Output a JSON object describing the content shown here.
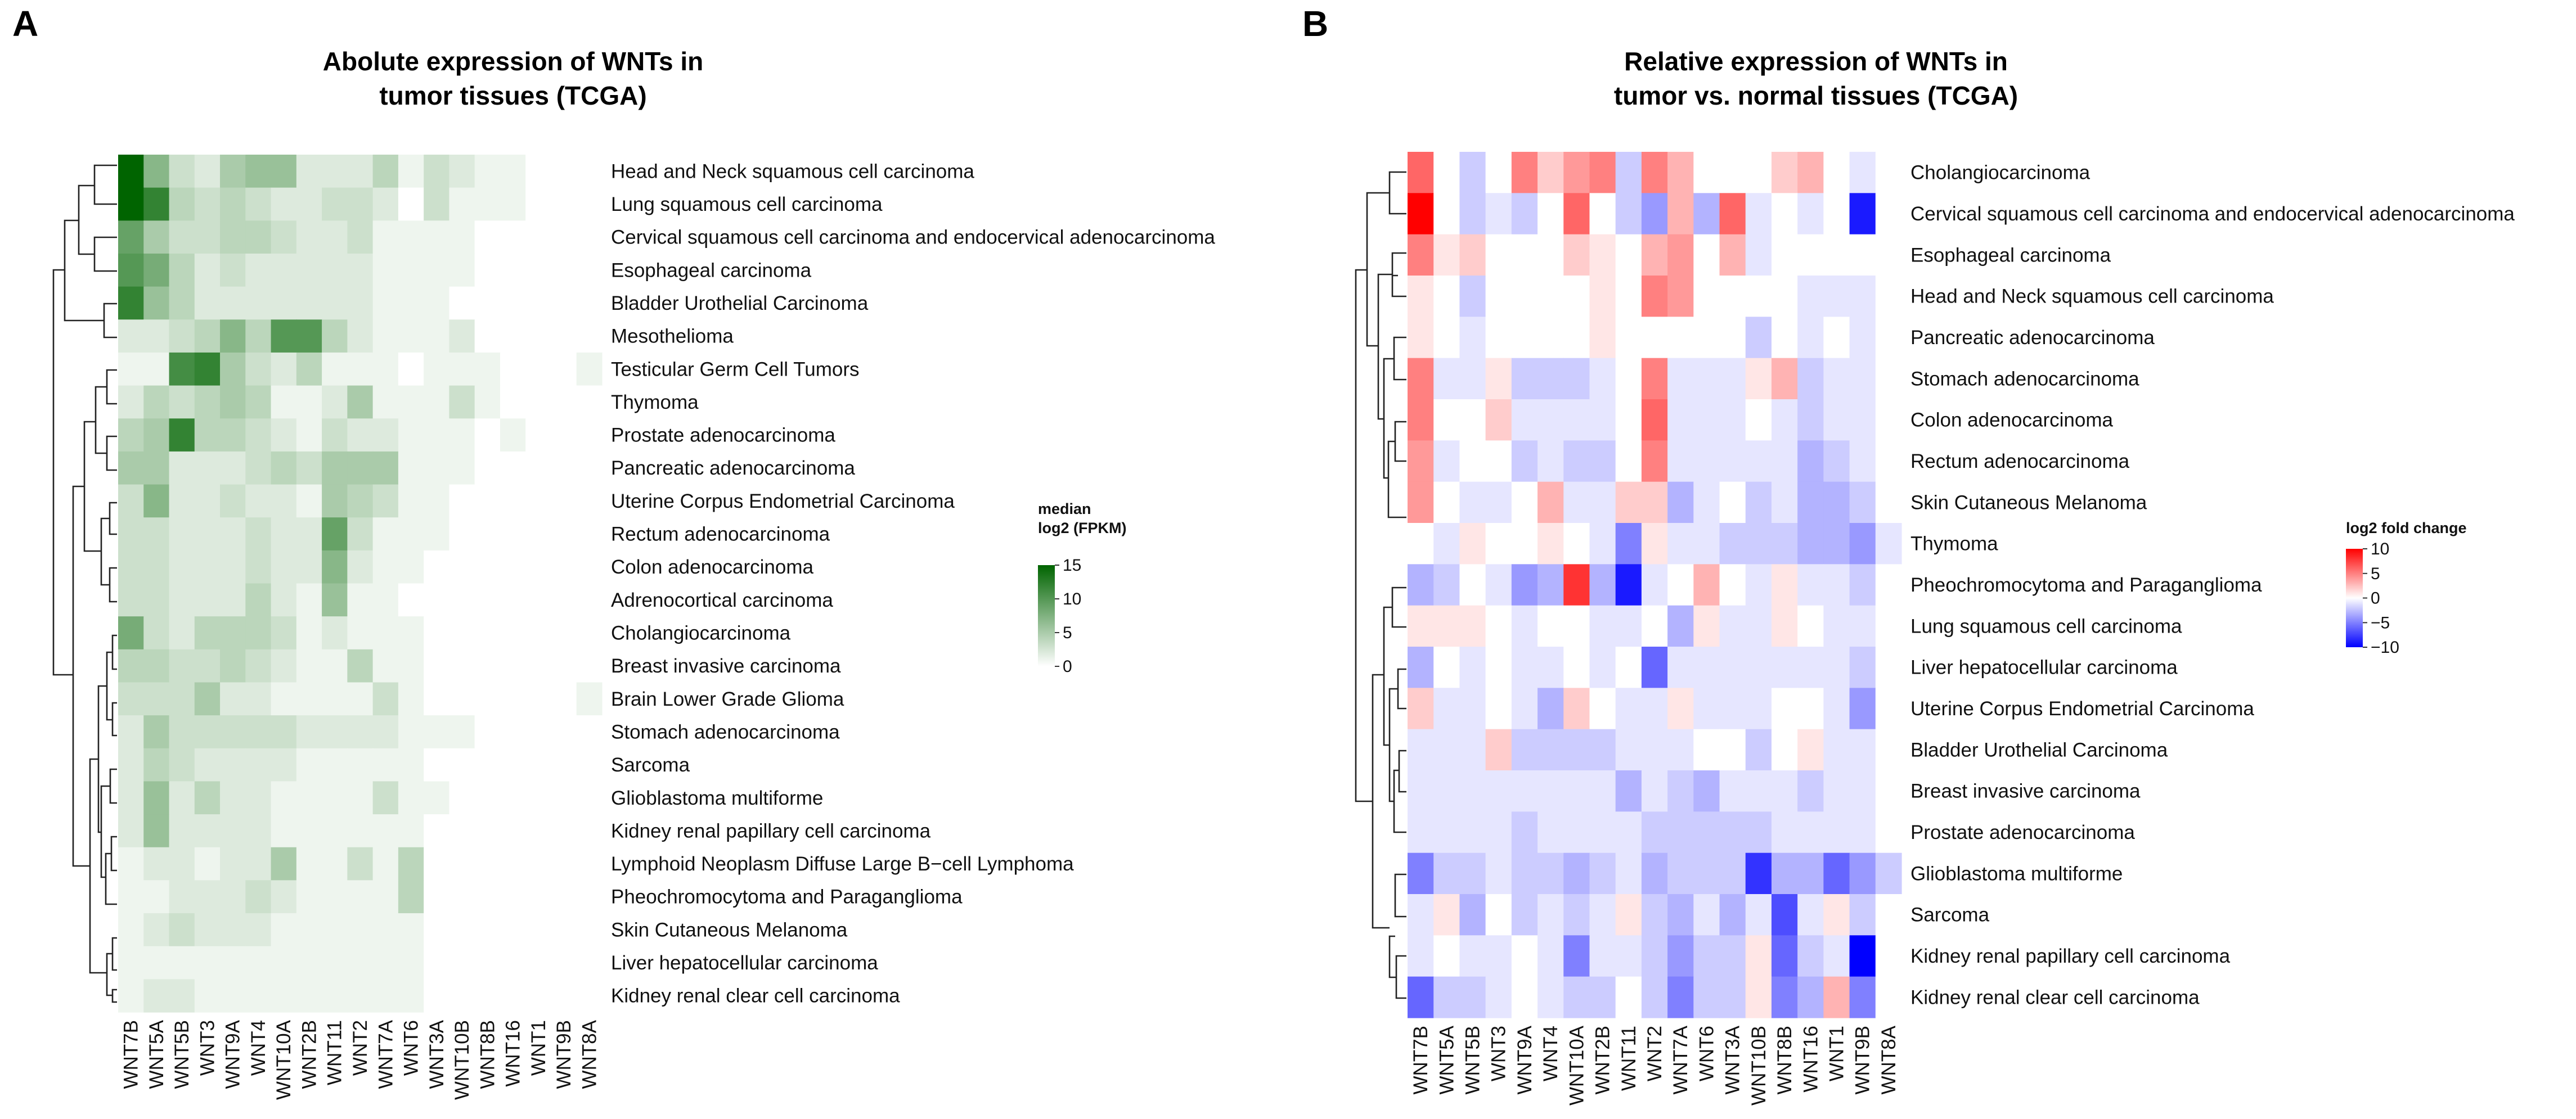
{
  "chart_data": [
    {
      "type": "heatmap",
      "panel_label": "A",
      "title": [
        "Abolute expression of WNTs in",
        "tumor tissues (TCGA)"
      ],
      "columns": [
        "WNT7B",
        "WNT5A",
        "WNT5B",
        "WNT3",
        "WNT9A",
        "WNT4",
        "WNT10A",
        "WNT2B",
        "WNT11",
        "WNT2",
        "WNT7A",
        "WNT6",
        "WNT3A",
        "WNT10B",
        "WNT8B",
        "WNT16",
        "WNT1",
        "WNT9B",
        "WNT8A"
      ],
      "rows": [
        "Head and Neck squamous cell carcinoma",
        "Lung squamous cell carcinoma",
        "Cervical squamous cell carcinoma and endocervical adenocarcinoma",
        "Esophageal carcinoma",
        "Bladder Urothelial Carcinoma",
        "Mesothelioma",
        "Testicular Germ Cell Tumors",
        "Thymoma",
        "Prostate adenocarcinoma",
        "Pancreatic adenocarcinoma",
        "Uterine Corpus Endometrial Carcinoma",
        "Rectum adenocarcinoma",
        "Colon adenocarcinoma",
        "Adrenocortical carcinoma",
        "Cholangiocarcinoma",
        "Breast invasive carcinoma",
        "Brain Lower Grade Glioma",
        "Stomach adenocarcinoma",
        "Sarcoma",
        "Glioblastoma multiforme",
        "Kidney renal papillary cell carcinoma",
        "Lymphoid Neoplasm Diffuse Large B−cell Lymphoma",
        "Pheochromocytoma and Paraganglioma",
        "Skin Cutaneous Melanoma",
        "Liver hepatocellular carcinoma",
        "Kidney renal clear cell carcinoma"
      ],
      "values": [
        [
          15,
          7,
          3,
          2,
          5,
          6,
          6,
          2,
          2,
          2,
          4,
          1,
          3,
          2,
          1,
          1,
          0,
          0,
          0
        ],
        [
          15,
          12,
          4,
          3,
          4,
          3,
          2,
          2,
          3,
          3,
          2,
          0,
          3,
          1,
          1,
          1,
          0,
          0,
          0
        ],
        [
          9,
          5,
          3,
          3,
          4,
          4,
          3,
          2,
          2,
          3,
          1,
          1,
          1,
          1,
          0,
          0,
          0,
          0,
          0
        ],
        [
          10,
          8,
          4,
          2,
          3,
          2,
          2,
          2,
          2,
          2,
          1,
          1,
          1,
          1,
          0,
          0,
          0,
          0,
          0
        ],
        [
          12,
          6,
          4,
          2,
          2,
          2,
          2,
          2,
          2,
          2,
          1,
          1,
          1,
          0,
          0,
          0,
          0,
          0,
          0
        ],
        [
          2,
          2,
          3,
          4,
          7,
          4,
          10,
          10,
          4,
          2,
          1,
          1,
          1,
          2,
          0,
          0,
          0,
          0,
          0
        ],
        [
          1,
          1,
          11,
          12,
          5,
          3,
          2,
          4,
          1,
          1,
          1,
          0,
          1,
          1,
          1,
          0,
          0,
          0,
          1
        ],
        [
          2,
          4,
          3,
          4,
          5,
          4,
          1,
          1,
          2,
          5,
          1,
          1,
          1,
          3,
          1,
          0,
          0,
          0,
          0
        ],
        [
          4,
          5,
          12,
          4,
          4,
          3,
          2,
          1,
          3,
          2,
          2,
          1,
          1,
          1,
          0,
          1,
          0,
          0,
          0
        ],
        [
          5,
          5,
          2,
          2,
          2,
          3,
          4,
          3,
          5,
          5,
          5,
          1,
          1,
          1,
          0,
          0,
          0,
          0,
          0
        ],
        [
          3,
          7,
          2,
          2,
          3,
          2,
          2,
          1,
          5,
          4,
          3,
          1,
          1,
          0,
          0,
          0,
          0,
          0,
          0
        ],
        [
          3,
          3,
          2,
          2,
          2,
          3,
          2,
          2,
          9,
          3,
          1,
          1,
          1,
          0,
          0,
          0,
          0,
          0,
          0
        ],
        [
          3,
          3,
          2,
          2,
          2,
          3,
          2,
          2,
          7,
          2,
          1,
          1,
          0,
          0,
          0,
          0,
          0,
          0,
          0
        ],
        [
          3,
          3,
          2,
          2,
          2,
          4,
          2,
          1,
          6,
          1,
          1,
          0,
          0,
          0,
          0,
          0,
          0,
          0,
          0
        ],
        [
          8,
          3,
          2,
          4,
          4,
          4,
          3,
          1,
          2,
          1,
          1,
          1,
          0,
          0,
          0,
          0,
          0,
          0,
          0
        ],
        [
          4,
          4,
          3,
          3,
          4,
          3,
          2,
          1,
          1,
          4,
          1,
          1,
          0,
          0,
          0,
          0,
          0,
          0,
          0
        ],
        [
          3,
          3,
          3,
          5,
          2,
          2,
          1,
          1,
          1,
          1,
          3,
          1,
          0,
          0,
          0,
          0,
          0,
          0,
          1
        ],
        [
          2,
          5,
          3,
          3,
          3,
          3,
          3,
          2,
          2,
          2,
          2,
          1,
          1,
          1,
          0,
          0,
          0,
          0,
          0
        ],
        [
          2,
          4,
          3,
          2,
          2,
          2,
          2,
          1,
          1,
          1,
          1,
          1,
          0,
          0,
          0,
          0,
          0,
          0,
          0
        ],
        [
          2,
          6,
          2,
          4,
          2,
          2,
          1,
          1,
          1,
          1,
          3,
          1,
          1,
          0,
          0,
          0,
          0,
          0,
          0
        ],
        [
          2,
          6,
          2,
          2,
          2,
          2,
          1,
          1,
          1,
          1,
          1,
          1,
          0,
          0,
          0,
          0,
          0,
          0,
          0
        ],
        [
          1,
          2,
          2,
          1,
          2,
          2,
          5,
          1,
          1,
          3,
          1,
          4,
          0,
          0,
          0,
          0,
          0,
          0,
          0
        ],
        [
          1,
          1,
          2,
          2,
          2,
          3,
          2,
          1,
          1,
          1,
          1,
          4,
          0,
          0,
          0,
          0,
          0,
          0,
          0
        ],
        [
          1,
          2,
          3,
          2,
          2,
          2,
          1,
          1,
          1,
          1,
          1,
          1,
          0,
          0,
          0,
          0,
          0,
          0,
          0
        ],
        [
          1,
          1,
          1,
          1,
          1,
          1,
          1,
          1,
          1,
          1,
          1,
          1,
          0,
          0,
          0,
          0,
          0,
          0,
          0
        ],
        [
          1,
          2,
          2,
          1,
          1,
          1,
          1,
          1,
          1,
          1,
          1,
          1,
          0,
          0,
          0,
          0,
          0,
          0,
          0
        ]
      ],
      "legend": {
        "title": [
          "median",
          "log2 (FPKM)"
        ],
        "ticks": [
          0,
          5,
          10,
          15
        ],
        "min": 0,
        "max": 15,
        "colors": [
          "#ffffff",
          "#006400"
        ]
      }
    },
    {
      "type": "heatmap",
      "panel_label": "B",
      "title": [
        "Relative expression of WNTs in",
        "tumor vs. normal tissues (TCGA)"
      ],
      "columns": [
        "WNT7B",
        "WNT5A",
        "WNT5B",
        "WNT3",
        "WNT9A",
        "WNT4",
        "WNT10A",
        "WNT2B",
        "WNT11",
        "WNT2",
        "WNT7A",
        "WNT6",
        "WNT3A",
        "WNT10B",
        "WNT8B",
        "WNT16",
        "WNT1",
        "WNT9B",
        "WNT8A"
      ],
      "rows": [
        "Cholangiocarcinoma",
        "Cervical squamous cell carcinoma and endocervical adenocarcinoma",
        "Esophageal carcinoma",
        "Head and Neck squamous cell carcinoma",
        "Pancreatic adenocarcinoma",
        "Stomach adenocarcinoma",
        "Colon adenocarcinoma",
        "Rectum adenocarcinoma",
        "Skin Cutaneous Melanoma",
        "Thymoma",
        "Pheochromocytoma and Paraganglioma",
        "Lung squamous cell carcinoma",
        "Liver hepatocellular carcinoma",
        "Uterine Corpus Endometrial Carcinoma",
        "Bladder Urothelial Carcinoma",
        "Breast invasive carcinoma",
        "Prostate adenocarcinoma",
        "Glioblastoma multiforme",
        "Sarcoma",
        "Kidney renal papillary cell carcinoma",
        "Kidney renal clear cell carcinoma"
      ],
      "values": [
        [
          6,
          0,
          -2,
          0,
          5,
          2,
          4,
          5,
          -2,
          5,
          3,
          0,
          0,
          0,
          2,
          3,
          0,
          -1,
          0
        ],
        [
          10,
          0,
          -2,
          -1,
          -2,
          0,
          6,
          0,
          -2,
          -4,
          3,
          -3,
          6,
          -1,
          0,
          -1,
          0,
          -9,
          0
        ],
        [
          5,
          1,
          2,
          0,
          0,
          0,
          2,
          1,
          0,
          3,
          4,
          0,
          3,
          -1,
          0,
          0,
          0,
          0,
          0
        ],
        [
          1,
          0,
          -2,
          0,
          0,
          0,
          0,
          1,
          0,
          5,
          4,
          0,
          0,
          0,
          0,
          -1,
          -1,
          -1,
          0
        ],
        [
          1,
          0,
          -1,
          0,
          0,
          0,
          0,
          1,
          0,
          0,
          0,
          0,
          0,
          -2,
          0,
          -1,
          0,
          -1,
          0
        ],
        [
          5,
          -1,
          -1,
          1,
          -2,
          -2,
          -2,
          -1,
          0,
          5,
          -1,
          -1,
          -1,
          1,
          3,
          -2,
          -1,
          -1,
          0
        ],
        [
          5,
          0,
          0,
          2,
          -1,
          -1,
          -1,
          -1,
          0,
          6,
          -1,
          -1,
          -1,
          0,
          -1,
          -2,
          -1,
          -1,
          0
        ],
        [
          4,
          -1,
          0,
          0,
          -2,
          -1,
          -2,
          -2,
          0,
          5,
          -1,
          -1,
          -1,
          -1,
          -1,
          -3,
          -2,
          -1,
          0
        ],
        [
          4,
          0,
          -1,
          -1,
          0,
          3,
          -1,
          -1,
          2,
          2,
          -3,
          -1,
          0,
          -2,
          -1,
          -3,
          -3,
          -2,
          0
        ],
        [
          0,
          -1,
          1,
          0,
          0,
          1,
          0,
          -1,
          -5,
          1,
          -1,
          -1,
          -2,
          -2,
          -2,
          -3,
          -3,
          -4,
          -1
        ],
        [
          -3,
          -2,
          0,
          -1,
          -4,
          -3,
          8,
          -3,
          -9,
          -1,
          0,
          3,
          0,
          -1,
          1,
          -1,
          -1,
          -2,
          0
        ],
        [
          1,
          1,
          1,
          0,
          -1,
          0,
          0,
          -1,
          -1,
          0,
          -3,
          1,
          -1,
          -1,
          1,
          0,
          -1,
          -1,
          0
        ],
        [
          -3,
          0,
          -1,
          0,
          -1,
          -1,
          0,
          -1,
          0,
          -6,
          -1,
          -1,
          -1,
          -1,
          -1,
          -1,
          -1,
          -2,
          0
        ],
        [
          2,
          -1,
          -1,
          0,
          -1,
          -3,
          2,
          0,
          -1,
          -1,
          1,
          -1,
          -1,
          -1,
          0,
          0,
          -1,
          -4,
          0
        ],
        [
          -1,
          -1,
          -1,
          2,
          -2,
          -2,
          -2,
          -2,
          -1,
          -1,
          -1,
          0,
          0,
          -2,
          0,
          1,
          -1,
          -1,
          0
        ],
        [
          -1,
          -1,
          -1,
          -1,
          -1,
          -1,
          -1,
          -1,
          -3,
          -1,
          -2,
          -3,
          -1,
          -1,
          -1,
          -2,
          -1,
          -1,
          0
        ],
        [
          -1,
          -1,
          -1,
          -1,
          -2,
          -1,
          -1,
          -1,
          -1,
          -2,
          -2,
          -2,
          -2,
          -2,
          -1,
          -1,
          -1,
          -1,
          0
        ],
        [
          -5,
          -2,
          -2,
          -1,
          -2,
          -2,
          -3,
          -2,
          -1,
          -3,
          -2,
          -2,
          -2,
          -8,
          -3,
          -3,
          -6,
          -4,
          -2
        ],
        [
          -1,
          1,
          -3,
          0,
          -2,
          -1,
          -2,
          -1,
          1,
          -2,
          -3,
          -1,
          -3,
          -1,
          -7,
          -1,
          1,
          -2,
          0
        ],
        [
          -1,
          0,
          -1,
          -1,
          0,
          -1,
          -5,
          -1,
          -1,
          -2,
          -4,
          -2,
          -2,
          1,
          -6,
          -2,
          -1,
          -10,
          0
        ],
        [
          -6,
          -2,
          -2,
          -1,
          0,
          -1,
          -2,
          -2,
          0,
          -2,
          -5,
          -2,
          -2,
          1,
          -5,
          -3,
          3,
          -5,
          0
        ]
      ],
      "legend": {
        "title": "log2 fold change",
        "ticks": [
          10,
          5,
          0,
          -5,
          -10
        ],
        "min": -10,
        "max": 10,
        "colors": [
          "#0000ff",
          "#ffffff",
          "#ff0000"
        ]
      }
    }
  ]
}
